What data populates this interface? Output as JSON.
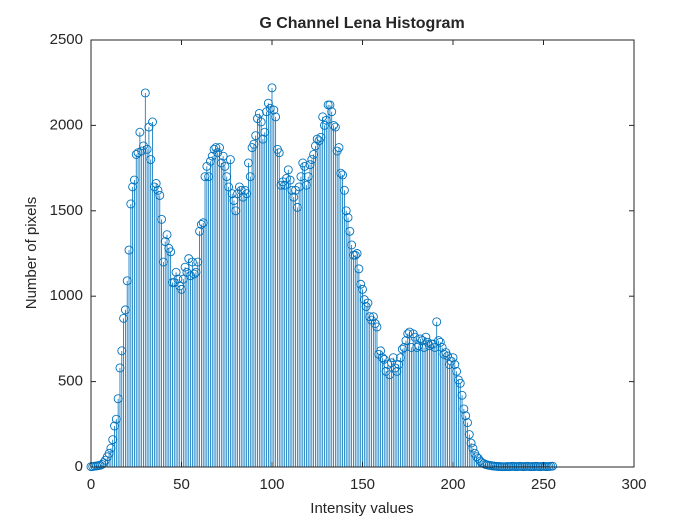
{
  "chart_data": {
    "type": "stem",
    "title": "G Channel Lena Histogram",
    "x_label": "Intensity values",
    "y_label": "Number of pixels",
    "color": "#0072bd",
    "x": [
      0,
      1,
      2,
      3,
      4,
      5,
      6,
      7,
      8,
      9,
      10,
      11,
      12,
      13,
      14,
      15,
      16,
      17,
      18,
      19,
      20,
      21,
      22,
      23,
      24,
      25,
      26,
      27,
      28,
      29,
      30,
      31,
      32,
      33,
      34,
      35,
      36,
      37,
      38,
      39,
      40,
      41,
      42,
      43,
      44,
      45,
      46,
      47,
      48,
      49,
      50,
      51,
      52,
      53,
      54,
      55,
      56,
      57,
      58,
      59,
      60,
      61,
      62,
      63,
      64,
      65,
      66,
      67,
      68,
      69,
      70,
      71,
      72,
      73,
      74,
      75,
      76,
      77,
      78,
      79,
      80,
      81,
      82,
      83,
      84,
      85,
      86,
      87,
      88,
      89,
      90,
      91,
      92,
      93,
      94,
      95,
      96,
      97,
      98,
      99,
      100,
      101,
      102,
      103,
      104,
      105,
      106,
      107,
      108,
      109,
      110,
      111,
      112,
      113,
      114,
      115,
      116,
      117,
      118,
      119,
      120,
      121,
      122,
      123,
      124,
      125,
      126,
      127,
      128,
      129,
      130,
      131,
      132,
      133,
      134,
      135,
      136,
      137,
      138,
      139,
      140,
      141,
      142,
      143,
      144,
      145,
      146,
      147,
      148,
      149,
      150,
      151,
      152,
      153,
      154,
      155,
      156,
      157,
      158,
      159,
      160,
      161,
      162,
      163,
      164,
      165,
      166,
      167,
      168,
      169,
      170,
      171,
      172,
      173,
      174,
      175,
      176,
      177,
      178,
      179,
      180,
      181,
      182,
      183,
      184,
      185,
      186,
      187,
      188,
      189,
      190,
      191,
      192,
      193,
      194,
      195,
      196,
      197,
      198,
      199,
      200,
      201,
      202,
      203,
      204,
      205,
      206,
      207,
      208,
      209,
      210,
      211,
      212,
      213,
      214,
      215,
      216,
      217,
      218,
      219,
      220,
      221,
      222,
      223,
      224,
      225,
      226,
      227,
      228,
      229,
      230,
      231,
      232,
      233,
      234,
      235,
      236,
      237,
      238,
      239,
      240,
      241,
      242,
      243,
      244,
      245,
      246,
      247,
      248,
      249,
      250,
      251,
      252,
      253,
      254,
      255
    ],
    "values": [
      2,
      3,
      5,
      6,
      8,
      10,
      15,
      25,
      40,
      60,
      80,
      110,
      160,
      240,
      280,
      400,
      580,
      680,
      870,
      920,
      1090,
      1270,
      1540,
      1640,
      1680,
      1830,
      1840,
      1960,
      1850,
      1880,
      2190,
      1860,
      1990,
      1800,
      2020,
      1640,
      1660,
      1620,
      1590,
      1450,
      1200,
      1320,
      1360,
      1280,
      1260,
      1080,
      1080,
      1140,
      1100,
      1060,
      1040,
      1100,
      1170,
      1140,
      1220,
      1120,
      1200,
      1130,
      1140,
      1200,
      1380,
      1420,
      1430,
      1700,
      1760,
      1700,
      1790,
      1820,
      1860,
      1870,
      1840,
      1870,
      1780,
      1820,
      1760,
      1700,
      1640,
      1800,
      1600,
      1560,
      1500,
      1600,
      1640,
      1620,
      1580,
      1620,
      1600,
      1780,
      1700,
      1870,
      1890,
      1940,
      2040,
      2070,
      2020,
      1920,
      1960,
      2080,
      2130,
      2100,
      2220,
      2090,
      2050,
      1860,
      1840,
      1650,
      1670,
      1650,
      1690,
      1740,
      1680,
      1620,
      1580,
      1620,
      1520,
      1640,
      1700,
      1780,
      1760,
      1650,
      1700,
      1770,
      1800,
      1830,
      1880,
      1920,
      1910,
      1930,
      2050,
      2000,
      2030,
      2120,
      2120,
      2080,
      2000,
      1990,
      1850,
      1870,
      1720,
      1710,
      1620,
      1500,
      1460,
      1380,
      1300,
      1240,
      1240,
      1250,
      1160,
      1070,
      1040,
      980,
      940,
      960,
      880,
      860,
      880,
      840,
      820,
      660,
      680,
      640,
      630,
      560,
      600,
      540,
      610,
      640,
      580,
      560,
      600,
      640,
      690,
      700,
      740,
      780,
      790,
      700,
      780,
      760,
      700,
      710,
      750,
      740,
      700,
      760,
      730,
      710,
      720,
      720,
      700,
      850,
      740,
      730,
      700,
      660,
      670,
      650,
      600,
      620,
      640,
      600,
      560,
      510,
      490,
      420,
      340,
      300,
      260,
      190,
      140,
      110,
      80,
      60,
      50,
      35,
      25,
      20,
      15,
      12,
      10,
      8,
      6,
      5,
      4,
      3,
      3,
      2,
      2,
      2,
      3,
      2,
      3,
      4,
      3,
      2,
      3,
      4,
      3,
      2,
      3,
      4,
      3,
      2,
      3,
      3,
      4,
      3,
      2,
      3,
      4,
      3,
      2,
      3,
      4,
      5
    ],
    "xlim": [
      0,
      300
    ],
    "xticks": [
      0,
      50,
      100,
      150,
      200,
      250,
      300
    ],
    "ylim": [
      0,
      2500
    ],
    "yticks": [
      0,
      500,
      1000,
      1500,
      2000,
      2500
    ]
  }
}
